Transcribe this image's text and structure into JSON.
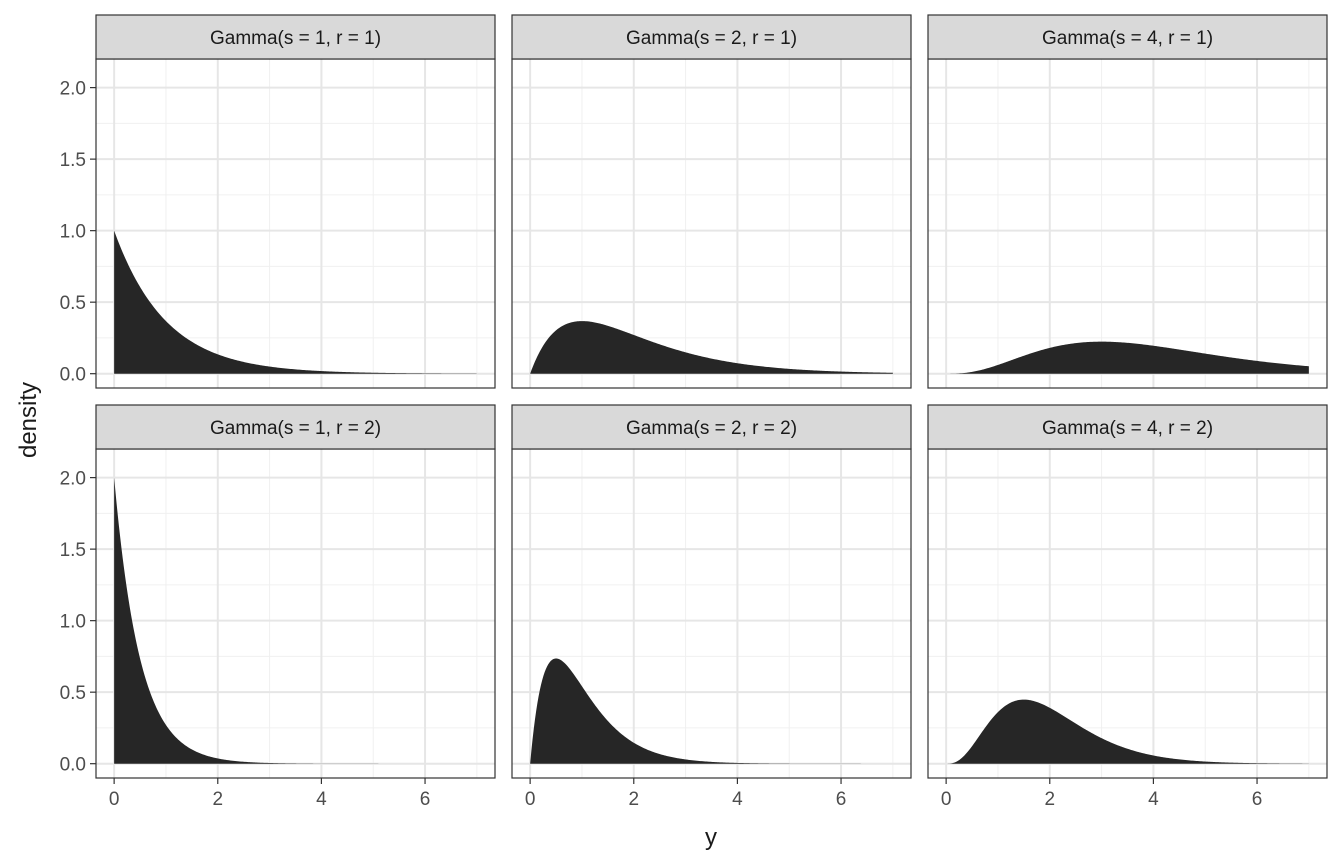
{
  "chart_data": {
    "type": "area",
    "facet_layout": "2 rows x 3 columns",
    "xlabel": "y",
    "ylabel": "density",
    "xlim": [
      -0.35,
      7.35
    ],
    "ylim": [
      -0.1,
      2.2
    ],
    "x_ticks": [
      0,
      2,
      4,
      6
    ],
    "x_tick_labels": [
      "0",
      "2",
      "4",
      "6"
    ],
    "y_ticks": [
      0.0,
      0.5,
      1.0,
      1.5,
      2.0
    ],
    "y_tick_labels": [
      "0.0",
      "0.5",
      "1.0",
      "1.5",
      "2.0"
    ],
    "grid": true,
    "fill_color": "#262626",
    "strip_color": "#d9d9d9",
    "panels": [
      {
        "label": "Gamma(s = 1, r = 1)",
        "shape": 1,
        "rate": 1,
        "x": [
          0,
          0.25,
          0.5,
          0.75,
          1,
          1.5,
          2,
          2.5,
          3,
          4,
          5,
          6,
          7
        ],
        "y": [
          1.0,
          0.779,
          0.607,
          0.472,
          0.368,
          0.223,
          0.135,
          0.082,
          0.05,
          0.018,
          0.007,
          0.002,
          0.001
        ]
      },
      {
        "label": "Gamma(s = 2, r = 1)",
        "shape": 2,
        "rate": 1,
        "x": [
          0,
          0.25,
          0.5,
          0.75,
          1,
          1.5,
          2,
          2.5,
          3,
          4,
          5,
          6,
          7
        ],
        "y": [
          0.0,
          0.195,
          0.303,
          0.354,
          0.368,
          0.335,
          0.271,
          0.205,
          0.149,
          0.073,
          0.034,
          0.015,
          0.006
        ]
      },
      {
        "label": "Gamma(s = 4, r = 1)",
        "shape": 4,
        "rate": 1,
        "x": [
          0,
          0.5,
          1,
          1.5,
          2,
          2.5,
          3,
          3.5,
          4,
          4.5,
          5,
          6,
          7
        ],
        "y": [
          0.0,
          0.013,
          0.061,
          0.126,
          0.18,
          0.214,
          0.224,
          0.216,
          0.195,
          0.169,
          0.14,
          0.089,
          0.052
        ]
      },
      {
        "label": "Gamma(s = 1, r = 2)",
        "shape": 1,
        "rate": 2,
        "x": [
          0,
          0.1,
          0.25,
          0.5,
          0.75,
          1,
          1.5,
          2,
          2.5,
          3,
          4,
          5,
          7
        ],
        "y": [
          2.0,
          1.637,
          1.213,
          0.736,
          0.446,
          0.271,
          0.1,
          0.037,
          0.013,
          0.005,
          0.001,
          0.0,
          0.0
        ]
      },
      {
        "label": "Gamma(s = 2, r = 2)",
        "shape": 2,
        "rate": 2,
        "x": [
          0,
          0.1,
          0.25,
          0.5,
          0.75,
          1,
          1.5,
          2,
          2.5,
          3,
          4,
          5,
          7
        ],
        "y": [
          0.0,
          0.327,
          0.607,
          0.736,
          0.669,
          0.541,
          0.299,
          0.147,
          0.067,
          0.03,
          0.005,
          0.001,
          0.0
        ]
      },
      {
        "label": "Gamma(s = 4, r = 2)",
        "shape": 4,
        "rate": 2,
        "x": [
          0,
          0.25,
          0.5,
          0.75,
          1,
          1.25,
          1.5,
          2,
          2.5,
          3,
          4,
          5,
          6,
          7
        ],
        "y": [
          0.0,
          0.016,
          0.098,
          0.251,
          0.361,
          0.428,
          0.448,
          0.391,
          0.28,
          0.179,
          0.057,
          0.015,
          0.004,
          0.001
        ]
      }
    ]
  }
}
